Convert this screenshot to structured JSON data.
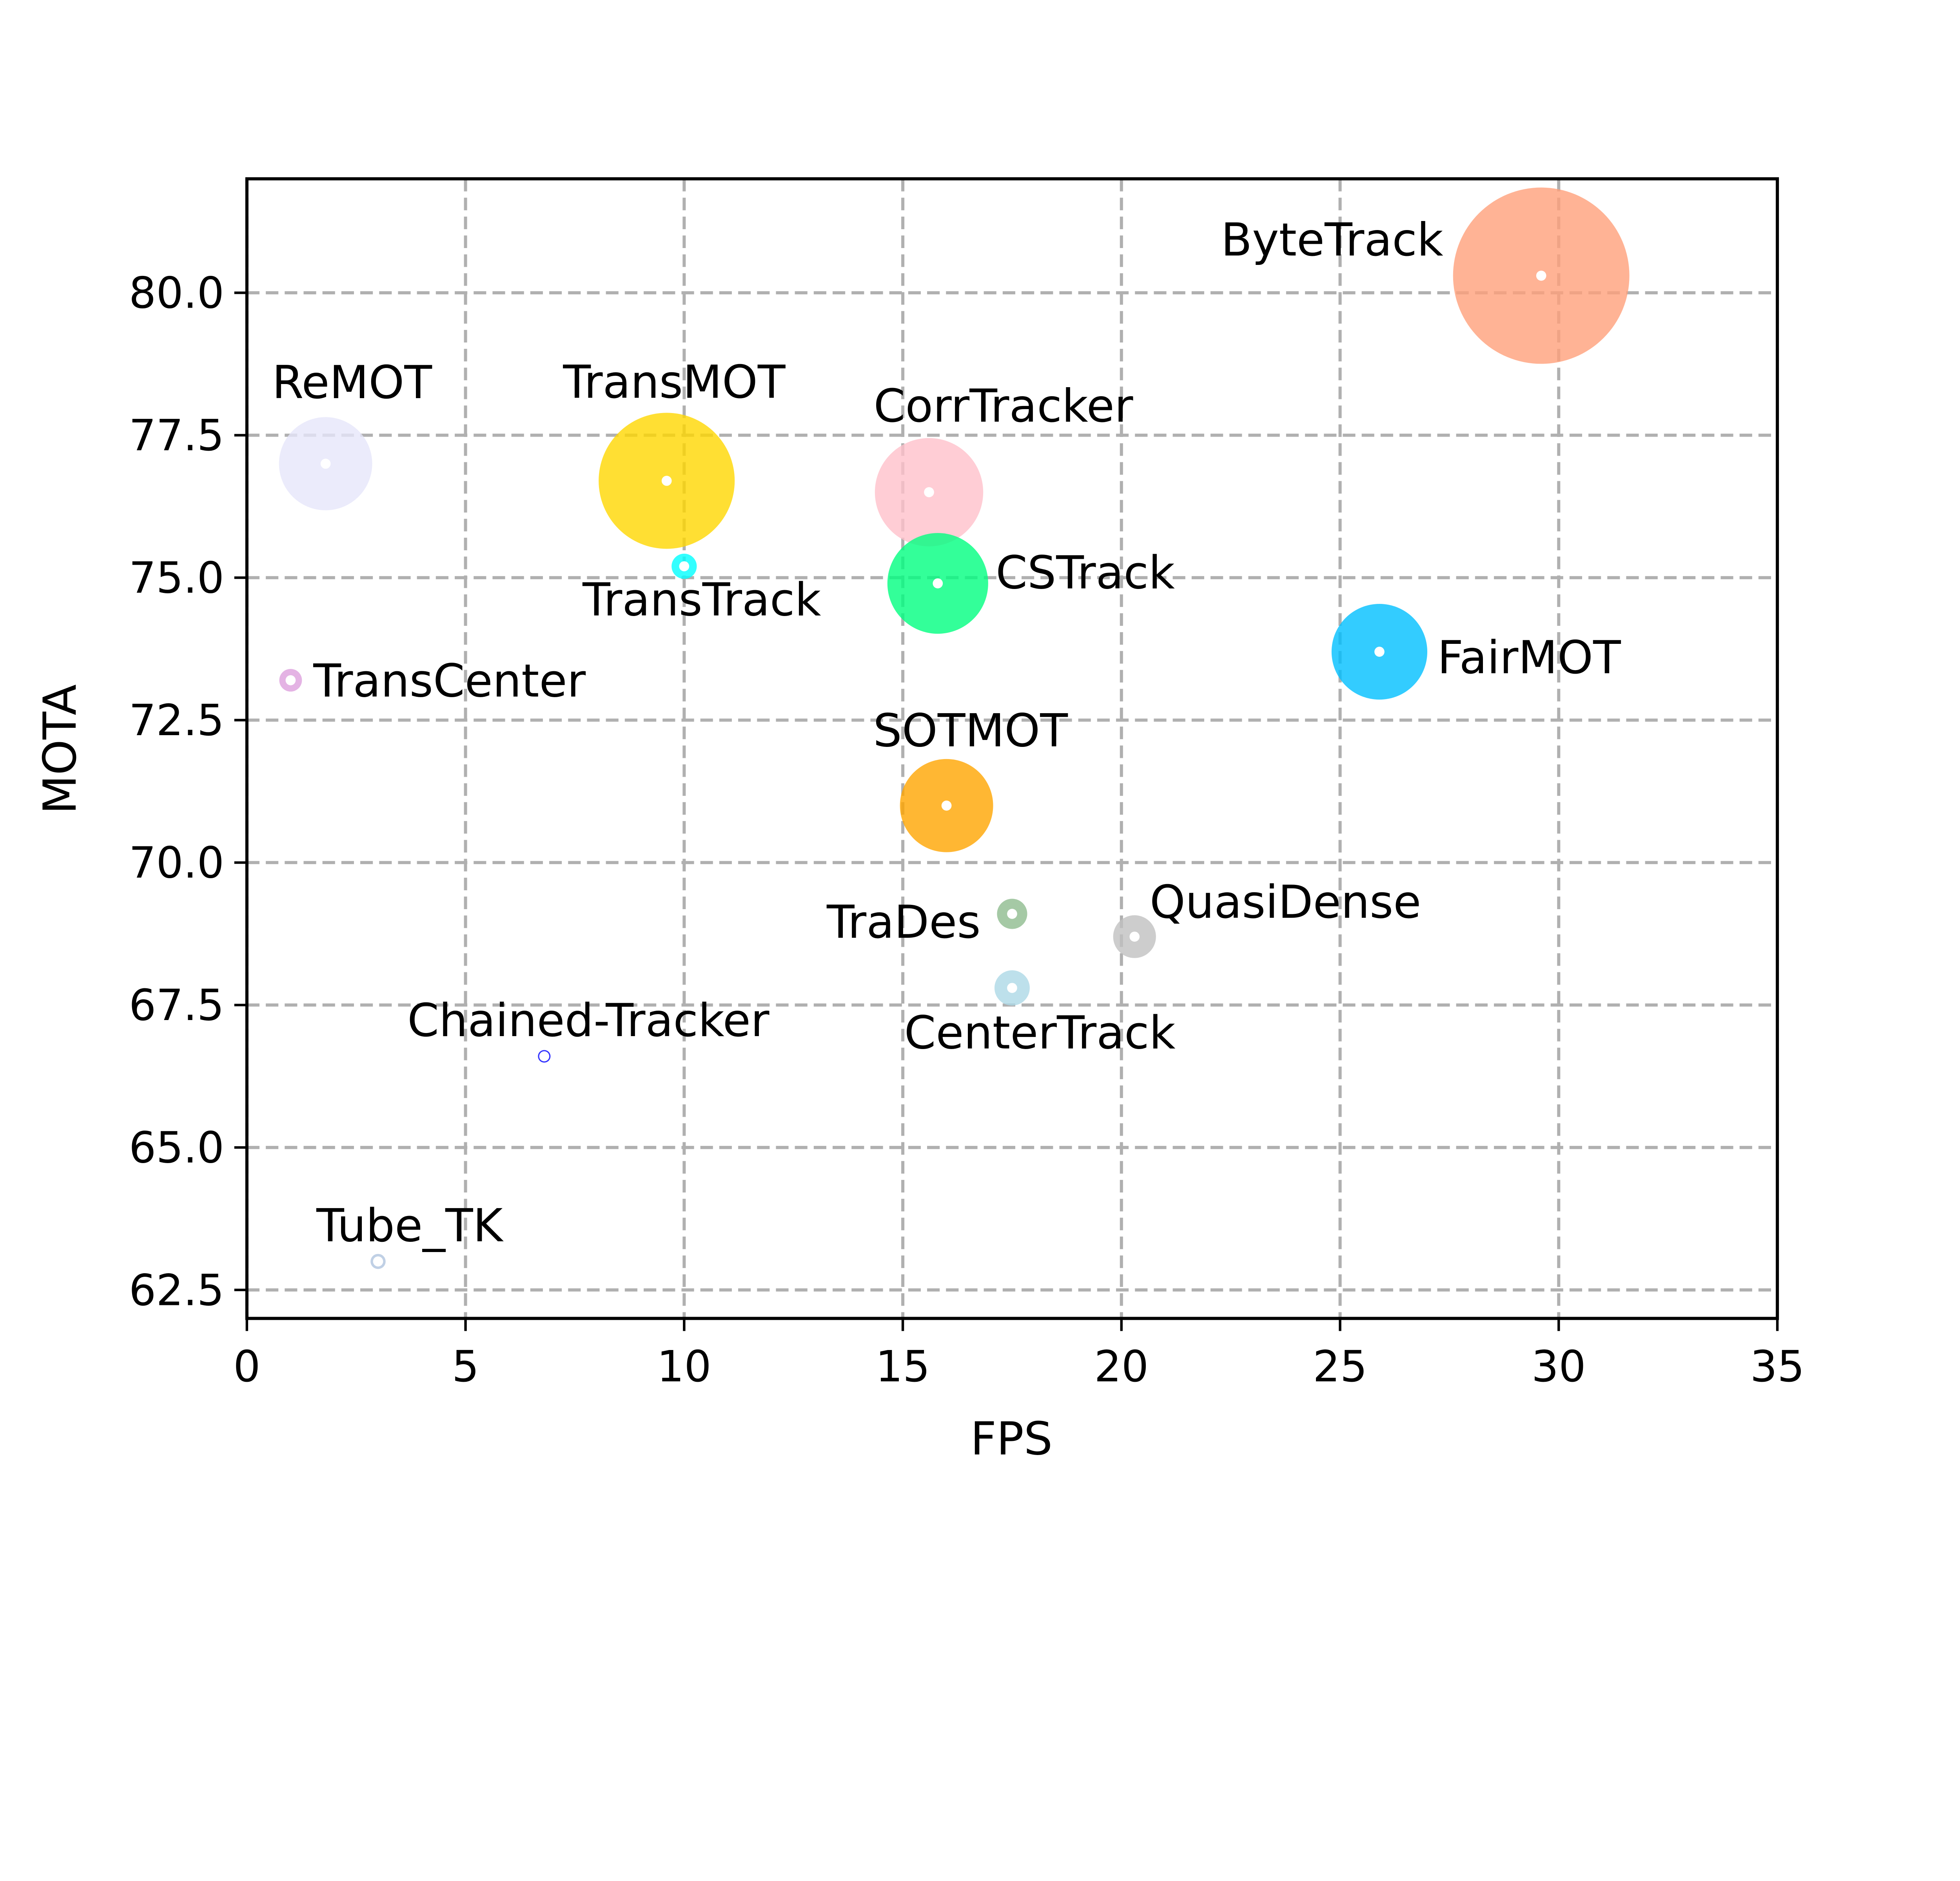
{
  "chart_data": {
    "type": "scatter",
    "title": "",
    "xlabel": "FPS",
    "ylabel": "MOTA",
    "xlim": [
      0,
      35
    ],
    "ylim": [
      62,
      82
    ],
    "xticks": [
      "0",
      "5",
      "10",
      "15",
      "20",
      "25",
      "30",
      "35"
    ],
    "yticks": [
      "62.5",
      "65.0",
      "67.5",
      "70.0",
      "72.5",
      "75.0",
      "77.5",
      "80.0"
    ],
    "grid": true,
    "points": [
      {
        "name": "ByteTrack",
        "x": 29.6,
        "y": 80.3,
        "color": "#FFA07A"
      },
      {
        "name": "ReMOT",
        "x": 1.8,
        "y": 77.0,
        "color": "#E6E6FA"
      },
      {
        "name": "TransMOT",
        "x": 9.6,
        "y": 76.7,
        "color": "#FFD700"
      },
      {
        "name": "CorrTracker",
        "x": 15.6,
        "y": 76.5,
        "color": "#FFC0CB"
      },
      {
        "name": "TransTrack",
        "x": 10.0,
        "y": 75.2,
        "color": "#00FFFF"
      },
      {
        "name": "CSTrack",
        "x": 15.8,
        "y": 74.9,
        "color": "#00FF7F"
      },
      {
        "name": "FairMOT",
        "x": 25.9,
        "y": 73.7,
        "color": "#00BFFF"
      },
      {
        "name": "TransCenter",
        "x": 1.0,
        "y": 73.2,
        "color": "#DDA0DD"
      },
      {
        "name": "SOTMOT",
        "x": 16.0,
        "y": 71.0,
        "color": "#FFA500"
      },
      {
        "name": "TraDes",
        "x": 17.5,
        "y": 69.1,
        "color": "#8FBC8F"
      },
      {
        "name": "QuasiDense",
        "x": 20.3,
        "y": 68.7,
        "color": "#C0C0C0"
      },
      {
        "name": "CenterTrack",
        "x": 17.5,
        "y": 67.8,
        "color": "#ADD8E6"
      },
      {
        "name": "Chained-Tracker",
        "x": 6.8,
        "y": 66.6,
        "color": "#0000FF"
      },
      {
        "name": "Tube_TK",
        "x": 3.0,
        "y": 63.0,
        "color": "#B0C4DE"
      }
    ]
  }
}
